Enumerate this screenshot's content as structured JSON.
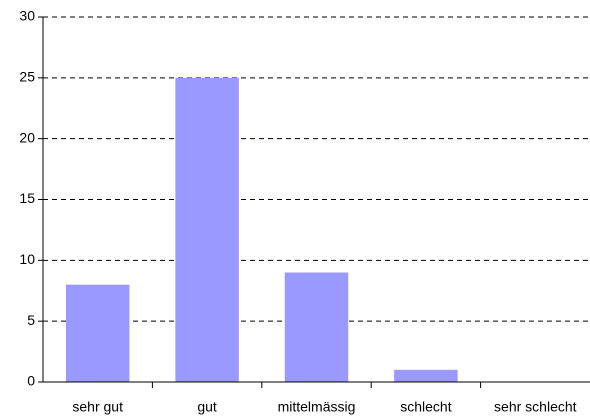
{
  "chart_data": {
    "type": "bar",
    "categories": [
      "sehr gut",
      "gut",
      "mittelmässig",
      "schlecht",
      "sehr schlecht"
    ],
    "values": [
      8,
      25,
      9,
      1,
      0
    ],
    "color": "#9999ff",
    "ylim": [
      0,
      30
    ],
    "yticks": [
      0,
      5,
      10,
      15,
      20,
      25,
      30
    ],
    "grid": true
  }
}
